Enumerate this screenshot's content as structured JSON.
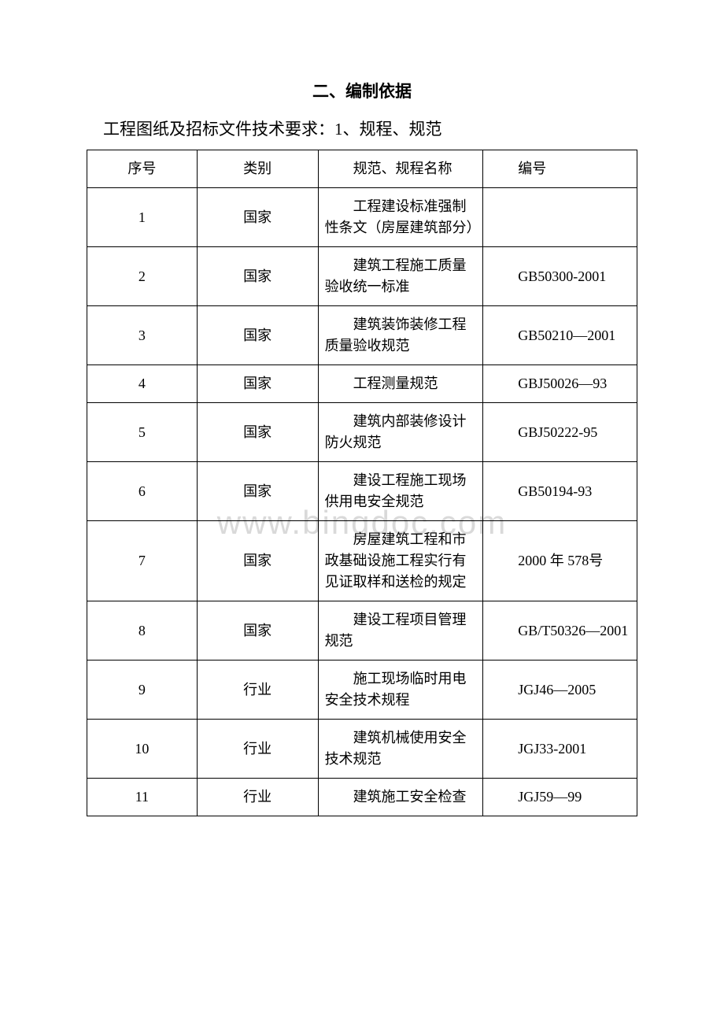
{
  "page": {
    "title": "二、编制依据",
    "subtitle": "工程图纸及招标文件技术要求：1、规程、规范",
    "watermark": "www.bingdoc.com"
  },
  "table": {
    "headers": {
      "seq": "序号",
      "cat": "类别",
      "name": "规范、规程名称",
      "code": "编号"
    },
    "rows": [
      {
        "seq": "1",
        "cat": "国家",
        "name": "工程建设标准强制性条文（房屋建筑部分）",
        "code": ""
      },
      {
        "seq": "2",
        "cat": "国家",
        "name": "建筑工程施工质量验收统一标准",
        "code": "GB50300-2001"
      },
      {
        "seq": "3",
        "cat": "国家",
        "name": "建筑装饰装修工程质量验收规范",
        "code": "GB50210—2001"
      },
      {
        "seq": "4",
        "cat": "国家",
        "name": "工程测量规范",
        "code": "GBJ50026—93"
      },
      {
        "seq": "5",
        "cat": "国家",
        "name": "建筑内部装修设计防火规范",
        "code": "GBJ50222-95"
      },
      {
        "seq": "6",
        "cat": "国家",
        "name": "建设工程施工现场供用电安全规范",
        "code": "GB50194-93"
      },
      {
        "seq": "7",
        "cat": "国家",
        "name": "房屋建筑工程和市政基础设施工程实行有见证取样和送检的规定",
        "code": "2000 年 578号"
      },
      {
        "seq": "8",
        "cat": "国家",
        "name": "建设工程项目管理规范",
        "code": "GB/T50326—2001"
      },
      {
        "seq": "9",
        "cat": "行业",
        "name": "施工现场临时用电安全技术规程",
        "code": "JGJ46—2005"
      },
      {
        "seq": "10",
        "cat": "行业",
        "name": "建筑机械使用安全技术规范",
        "code": "JGJ33-2001"
      },
      {
        "seq": "11",
        "cat": "行业",
        "name": "建筑施工安全检查",
        "code": "JGJ59—99"
      }
    ]
  },
  "style": {
    "font_body": "SimSun",
    "font_title": "SimHei",
    "title_fontsize": 21,
    "body_fontsize": 18,
    "border_color": "#000000",
    "text_color": "#000000",
    "background_color": "#ffffff",
    "watermark_color": "#d9d9d9",
    "col_widths_pct": [
      20,
      22,
      30,
      28
    ]
  }
}
